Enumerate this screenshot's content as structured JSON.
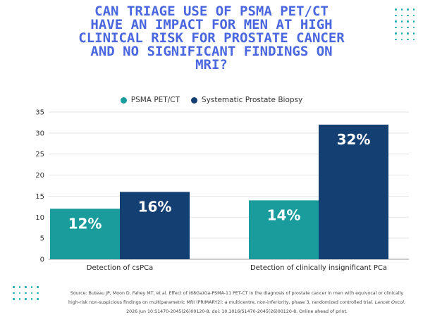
{
  "title": "Can triage use of PSMA PET/CT\nhave an impact for men at high\nclinical risk for prostate cancer\nand no significant findings on\nMRI?",
  "colors": {
    "title": "#4a67df",
    "psma": "#1a9c9c",
    "biopsy": "#143f72",
    "decoration": "#13a9b4"
  },
  "chart_data": {
    "type": "bar",
    "categories": [
      "Detection of csPCa",
      "Detection of clinically insignificant PCa"
    ],
    "series": [
      {
        "name": "PSMA PET/CT",
        "values": [
          12,
          14
        ],
        "labels": [
          "12%",
          "14%"
        ],
        "color": "#1a9c9c"
      },
      {
        "name": "Systematic Prostate Biopsy",
        "values": [
          16,
          32
        ],
        "labels": [
          "16%",
          "32%"
        ],
        "color": "#143f72"
      }
    ],
    "yticks": [
      0,
      5,
      10,
      15,
      20,
      25,
      30,
      35
    ],
    "ylim": [
      0,
      35
    ],
    "grid": true,
    "legend": "top-center"
  },
  "source": {
    "text": "Source: Buteau JP, Moon D, Fahey MT, et al. Effect of (68Ga)Ga-PSMA-11 PET-CT in the diagnosis of prostate cancer in men with equivocal or clinically high-risk non-suspicious findings on multiparametric MRI (PRIMARY2): a multicentre, non-inferiority, phase 3, randomized controlled trial.",
    "journal": "Lancet Oncol.",
    "citation": "2026 Jun 10:S1470-2045(26)00120-8. doi: 10.1016/S1470-2045(26)00120-8. Online ahead of print."
  }
}
